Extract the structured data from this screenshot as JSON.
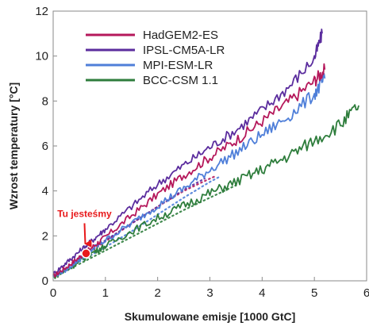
{
  "chart_data": {
    "type": "line",
    "xlabel": "Skumulowane emisje [1000 GtC]",
    "ylabel": "Wzrost temperatury [°C]",
    "xlim": [
      0,
      6
    ],
    "ylim": [
      0,
      12
    ],
    "x_ticks": [
      "0",
      "1",
      "2",
      "3",
      "4",
      "5",
      "6"
    ],
    "y_ticks": [
      "0",
      "2",
      "4",
      "6",
      "8",
      "10",
      "12"
    ],
    "grid": false,
    "legend_position": "top-left",
    "series": [
      {
        "name": "HadGEM2-ES",
        "color": "#b5185b",
        "style": "solid",
        "x": [
          0,
          0.25,
          0.5,
          0.75,
          1.0,
          1.5,
          2.0,
          2.5,
          3.0,
          3.5,
          4.0,
          4.5,
          5.0,
          5.2
        ],
        "y": [
          0.2,
          0.6,
          1.05,
          1.5,
          1.95,
          2.9,
          3.85,
          4.7,
          5.5,
          6.25,
          7.1,
          7.95,
          8.9,
          9.4
        ]
      },
      {
        "name": "IPSL-CM5A-LR",
        "color": "#5b2d9e",
        "style": "solid",
        "x": [
          0,
          0.25,
          0.5,
          0.75,
          1.0,
          1.5,
          2.0,
          2.5,
          3.0,
          3.5,
          4.0,
          4.5,
          5.0,
          5.15
        ],
        "y": [
          0.3,
          0.8,
          1.3,
          1.8,
          2.3,
          3.3,
          4.3,
          5.15,
          5.95,
          6.7,
          7.6,
          8.6,
          9.9,
          11.0
        ]
      },
      {
        "name": "MPI-ESM-LR",
        "color": "#4f7fd9",
        "style": "solid",
        "x": [
          0,
          0.25,
          0.5,
          0.75,
          1.0,
          1.5,
          2.0,
          2.5,
          3.0,
          3.5,
          4.0,
          4.5,
          5.0,
          5.2
        ],
        "y": [
          0.2,
          0.5,
          0.95,
          1.4,
          1.8,
          2.55,
          3.35,
          4.1,
          4.95,
          5.7,
          6.5,
          7.3,
          8.3,
          9.0
        ]
      },
      {
        "name": "BCC-CSM 1.1",
        "color": "#2e7d3c",
        "style": "solid",
        "x": [
          0,
          0.25,
          0.5,
          0.75,
          1.0,
          1.5,
          2.0,
          2.5,
          3.0,
          3.5,
          4.0,
          4.5,
          5.0,
          5.5,
          5.85
        ],
        "y": [
          0.15,
          0.45,
          0.85,
          1.25,
          1.55,
          2.2,
          2.8,
          3.35,
          3.9,
          4.4,
          4.95,
          5.55,
          6.25,
          6.95,
          7.8
        ]
      }
    ],
    "dotted_series": [
      {
        "color": "#b5185b",
        "x": [
          0.5,
          1.0,
          1.5,
          2.0,
          2.5,
          3.0,
          3.1
        ],
        "y": [
          0.95,
          1.75,
          2.55,
          3.3,
          4.0,
          4.55,
          4.65
        ]
      },
      {
        "color": "#5b2d9e",
        "x": [
          0.5,
          1.0,
          1.5,
          2.0,
          2.5,
          2.9
        ],
        "y": [
          1.0,
          1.8,
          2.55,
          3.3,
          4.05,
          4.55
        ]
      },
      {
        "color": "#4f7fd9",
        "x": [
          0.5,
          1.0,
          1.5,
          2.0,
          2.5,
          3.0,
          3.2
        ],
        "y": [
          0.85,
          1.5,
          2.2,
          2.95,
          3.7,
          4.4,
          4.65
        ]
      },
      {
        "color": "#2e7d3c",
        "x": [
          0.5,
          1.0,
          1.5,
          2.0,
          2.5,
          3.0,
          3.5
        ],
        "y": [
          0.75,
          1.35,
          1.95,
          2.55,
          3.15,
          3.7,
          4.25
        ]
      }
    ],
    "annotation": {
      "text": "Tu jesteśmy",
      "color": "#e8191b",
      "x": 0.63,
      "y": 1.22
    }
  }
}
